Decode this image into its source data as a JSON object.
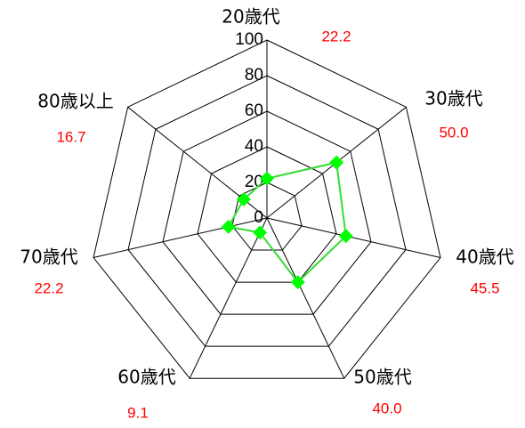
{
  "chart_data": {
    "type": "radar",
    "categories": [
      "20歳代",
      "30歳代",
      "40歳代",
      "50歳代",
      "60歳代",
      "70歳代",
      "80歳以上"
    ],
    "series": [
      {
        "color": "#33dd33",
        "marker_color": "#00ff00",
        "values": [
          22.2,
          50,
          45.5,
          40,
          9.1,
          22.2,
          16.7
        ],
        "value_labels": [
          "22.2",
          "50.0",
          "45.5",
          "40.0",
          "9.1",
          "22.2",
          "16.7"
        ]
      }
    ],
    "ylim": [
      0,
      100
    ],
    "yticks": [
      0,
      20,
      40,
      60,
      80,
      100
    ],
    "grid": true,
    "value_label_color": "#ff0000"
  }
}
